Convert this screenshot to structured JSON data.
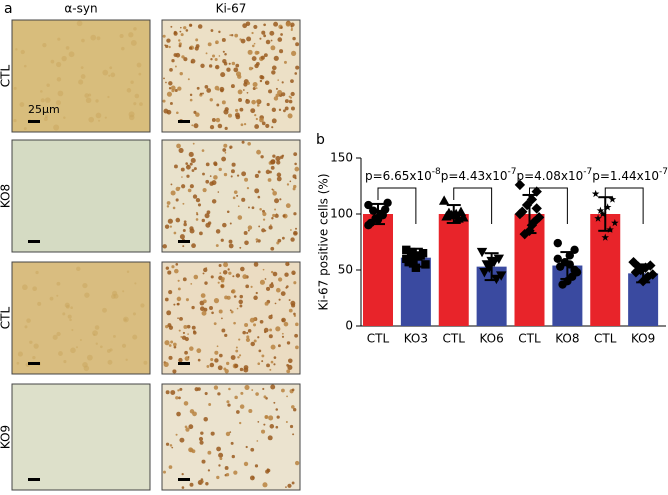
{
  "panel_a": {
    "letter": "a",
    "columns": [
      "α-syn",
      "Ki-67"
    ],
    "rows": [
      "CTL",
      "KO8",
      "CTL",
      "KO9"
    ],
    "scale_bar": "25μm"
  },
  "chart_data": {
    "type": "bar",
    "letter": "b",
    "y_label": "Ki-67 positive cells (%)",
    "categories": [
      "CTL",
      "KO3",
      "CTL",
      "KO6",
      "CTL",
      "KO8",
      "CTL",
      "KO9"
    ],
    "values": [
      100,
      61,
      100,
      53,
      100,
      54,
      100,
      47
    ],
    "errors": [
      9,
      8,
      8,
      12,
      17,
      12,
      15,
      8
    ],
    "colors": [
      "#e8242a",
      "#3a4aa0",
      "#e8242a",
      "#3a4aa0",
      "#e8242a",
      "#3a4aa0",
      "#e8242a",
      "#3a4aa0"
    ],
    "markers": [
      "circle",
      "square",
      "triangle",
      "triangle-down",
      "diamond",
      "circle",
      "star",
      "diamond"
    ],
    "points": [
      [
        108,
        104,
        100,
        96,
        92,
        110,
        99,
        95,
        103,
        90
      ],
      [
        68,
        65,
        62,
        59,
        57,
        55,
        63,
        52,
        66,
        60
      ],
      [
        112,
        102,
        100,
        99,
        98,
        97,
        96,
        100,
        101
      ],
      [
        66,
        60,
        57,
        52,
        48,
        45,
        42,
        58,
        55
      ],
      [
        126,
        120,
        113,
        108,
        102,
        97,
        93,
        85,
        82,
        100,
        105,
        90
      ],
      [
        74,
        68,
        63,
        57,
        53,
        48,
        44,
        40,
        37,
        60,
        50,
        55
      ],
      [
        118,
        113,
        106,
        100,
        96,
        92,
        86,
        79,
        103
      ],
      [
        57,
        54,
        52,
        50,
        48,
        46,
        44,
        40,
        53
      ]
    ],
    "annotations": [
      {
        "text": "p=6.65x10",
        "exponent": "-8"
      },
      {
        "text": "p=4.43x10",
        "exponent": "-7"
      },
      {
        "text": "p=4.08x10",
        "exponent": "-7"
      },
      {
        "text": "p=1.44x10",
        "exponent": "-7"
      }
    ],
    "ylim": [
      0,
      150
    ],
    "yticks": [
      0,
      50,
      100,
      150
    ]
  }
}
